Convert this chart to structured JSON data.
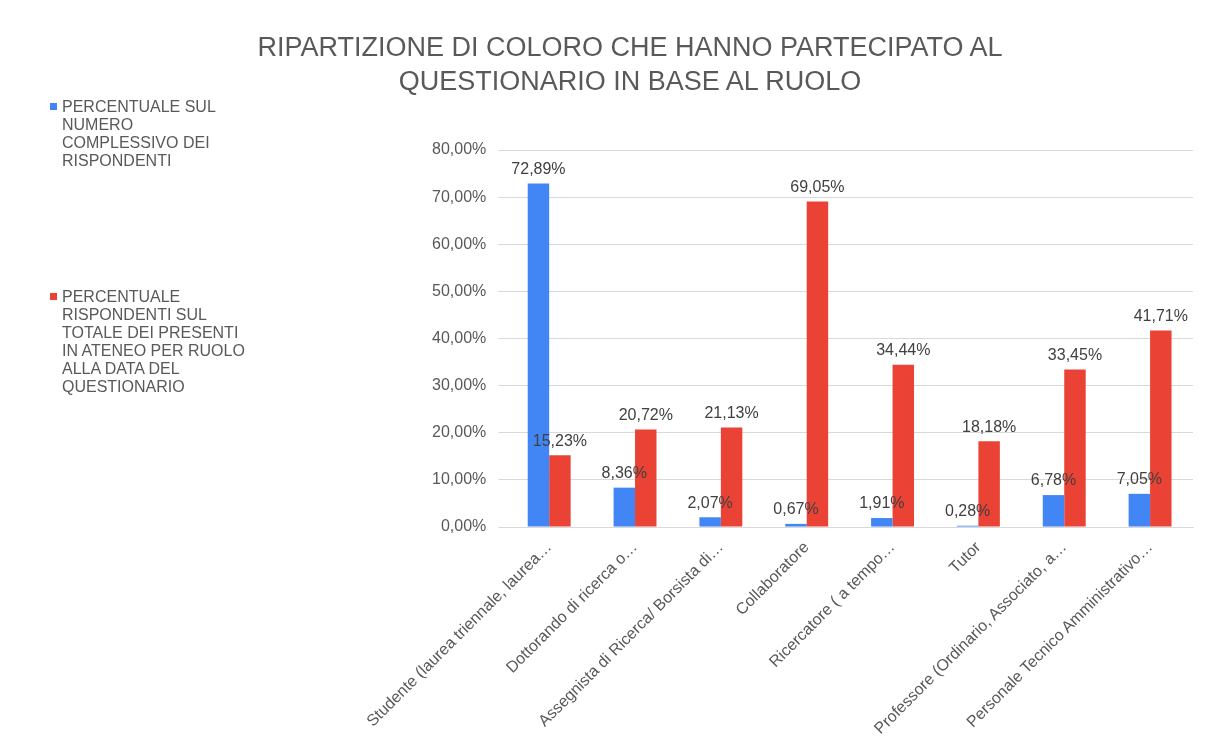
{
  "chart_data": {
    "type": "bar",
    "title": "RIPARTIZIONE  DI COLORO CHE HANNO PARTECIPATO AL QUESTIONARIO IN BASE AL RUOLO",
    "categories": [
      "Studente (laurea triennale, laurea…",
      "Dottorando di ricerca o…",
      "Assegnista di Ricerca/ Borsista di…",
      "Collaboratore",
      "Ricercatore ( a tempo…",
      "Tutor",
      "Professore (Ordinario, Associato, a…",
      "Personale Tecnico Amministrativo…"
    ],
    "series": [
      {
        "name": "PERCENTUALE SUL NUMERO COMPLESSIVO DEI RISPONDENTI",
        "color": "#4285f4",
        "values": [
          72.89,
          8.36,
          2.07,
          0.67,
          1.91,
          0.28,
          6.78,
          7.05
        ],
        "value_labels": [
          "72,89%",
          "8,36%",
          "2,07%",
          "0,67%",
          "1,91%",
          "0,28%",
          "6,78%",
          "7,05%"
        ]
      },
      {
        "name": "PERCENTUALE RISPONDENTI SUL TOTALE DEI PRESENTI IN ATENEO PER RUOLO ALLA DATA DEL QUESTIONARIO",
        "color": "#ea4335",
        "values": [
          15.23,
          20.72,
          21.13,
          69.05,
          34.44,
          18.18,
          33.45,
          41.71
        ],
        "value_labels": [
          "15,23%",
          "20,72%",
          "21,13%",
          "69,05%",
          "34,44%",
          "18,18%",
          "33,45%",
          "41,71%"
        ]
      }
    ],
    "ylim": [
      0,
      80
    ],
    "yticks": [
      {
        "value": 0,
        "label": "0,00%"
      },
      {
        "value": 10,
        "label": "10,00%"
      },
      {
        "value": 20,
        "label": "20,00%"
      },
      {
        "value": 30,
        "label": "30,00%"
      },
      {
        "value": 40,
        "label": "40,00%"
      },
      {
        "value": 50,
        "label": "50,00%"
      },
      {
        "value": 60,
        "label": "60,00%"
      },
      {
        "value": 70,
        "label": "70,00%"
      },
      {
        "value": 80,
        "label": "80,00%"
      }
    ],
    "grid": "y",
    "legend": "left"
  }
}
